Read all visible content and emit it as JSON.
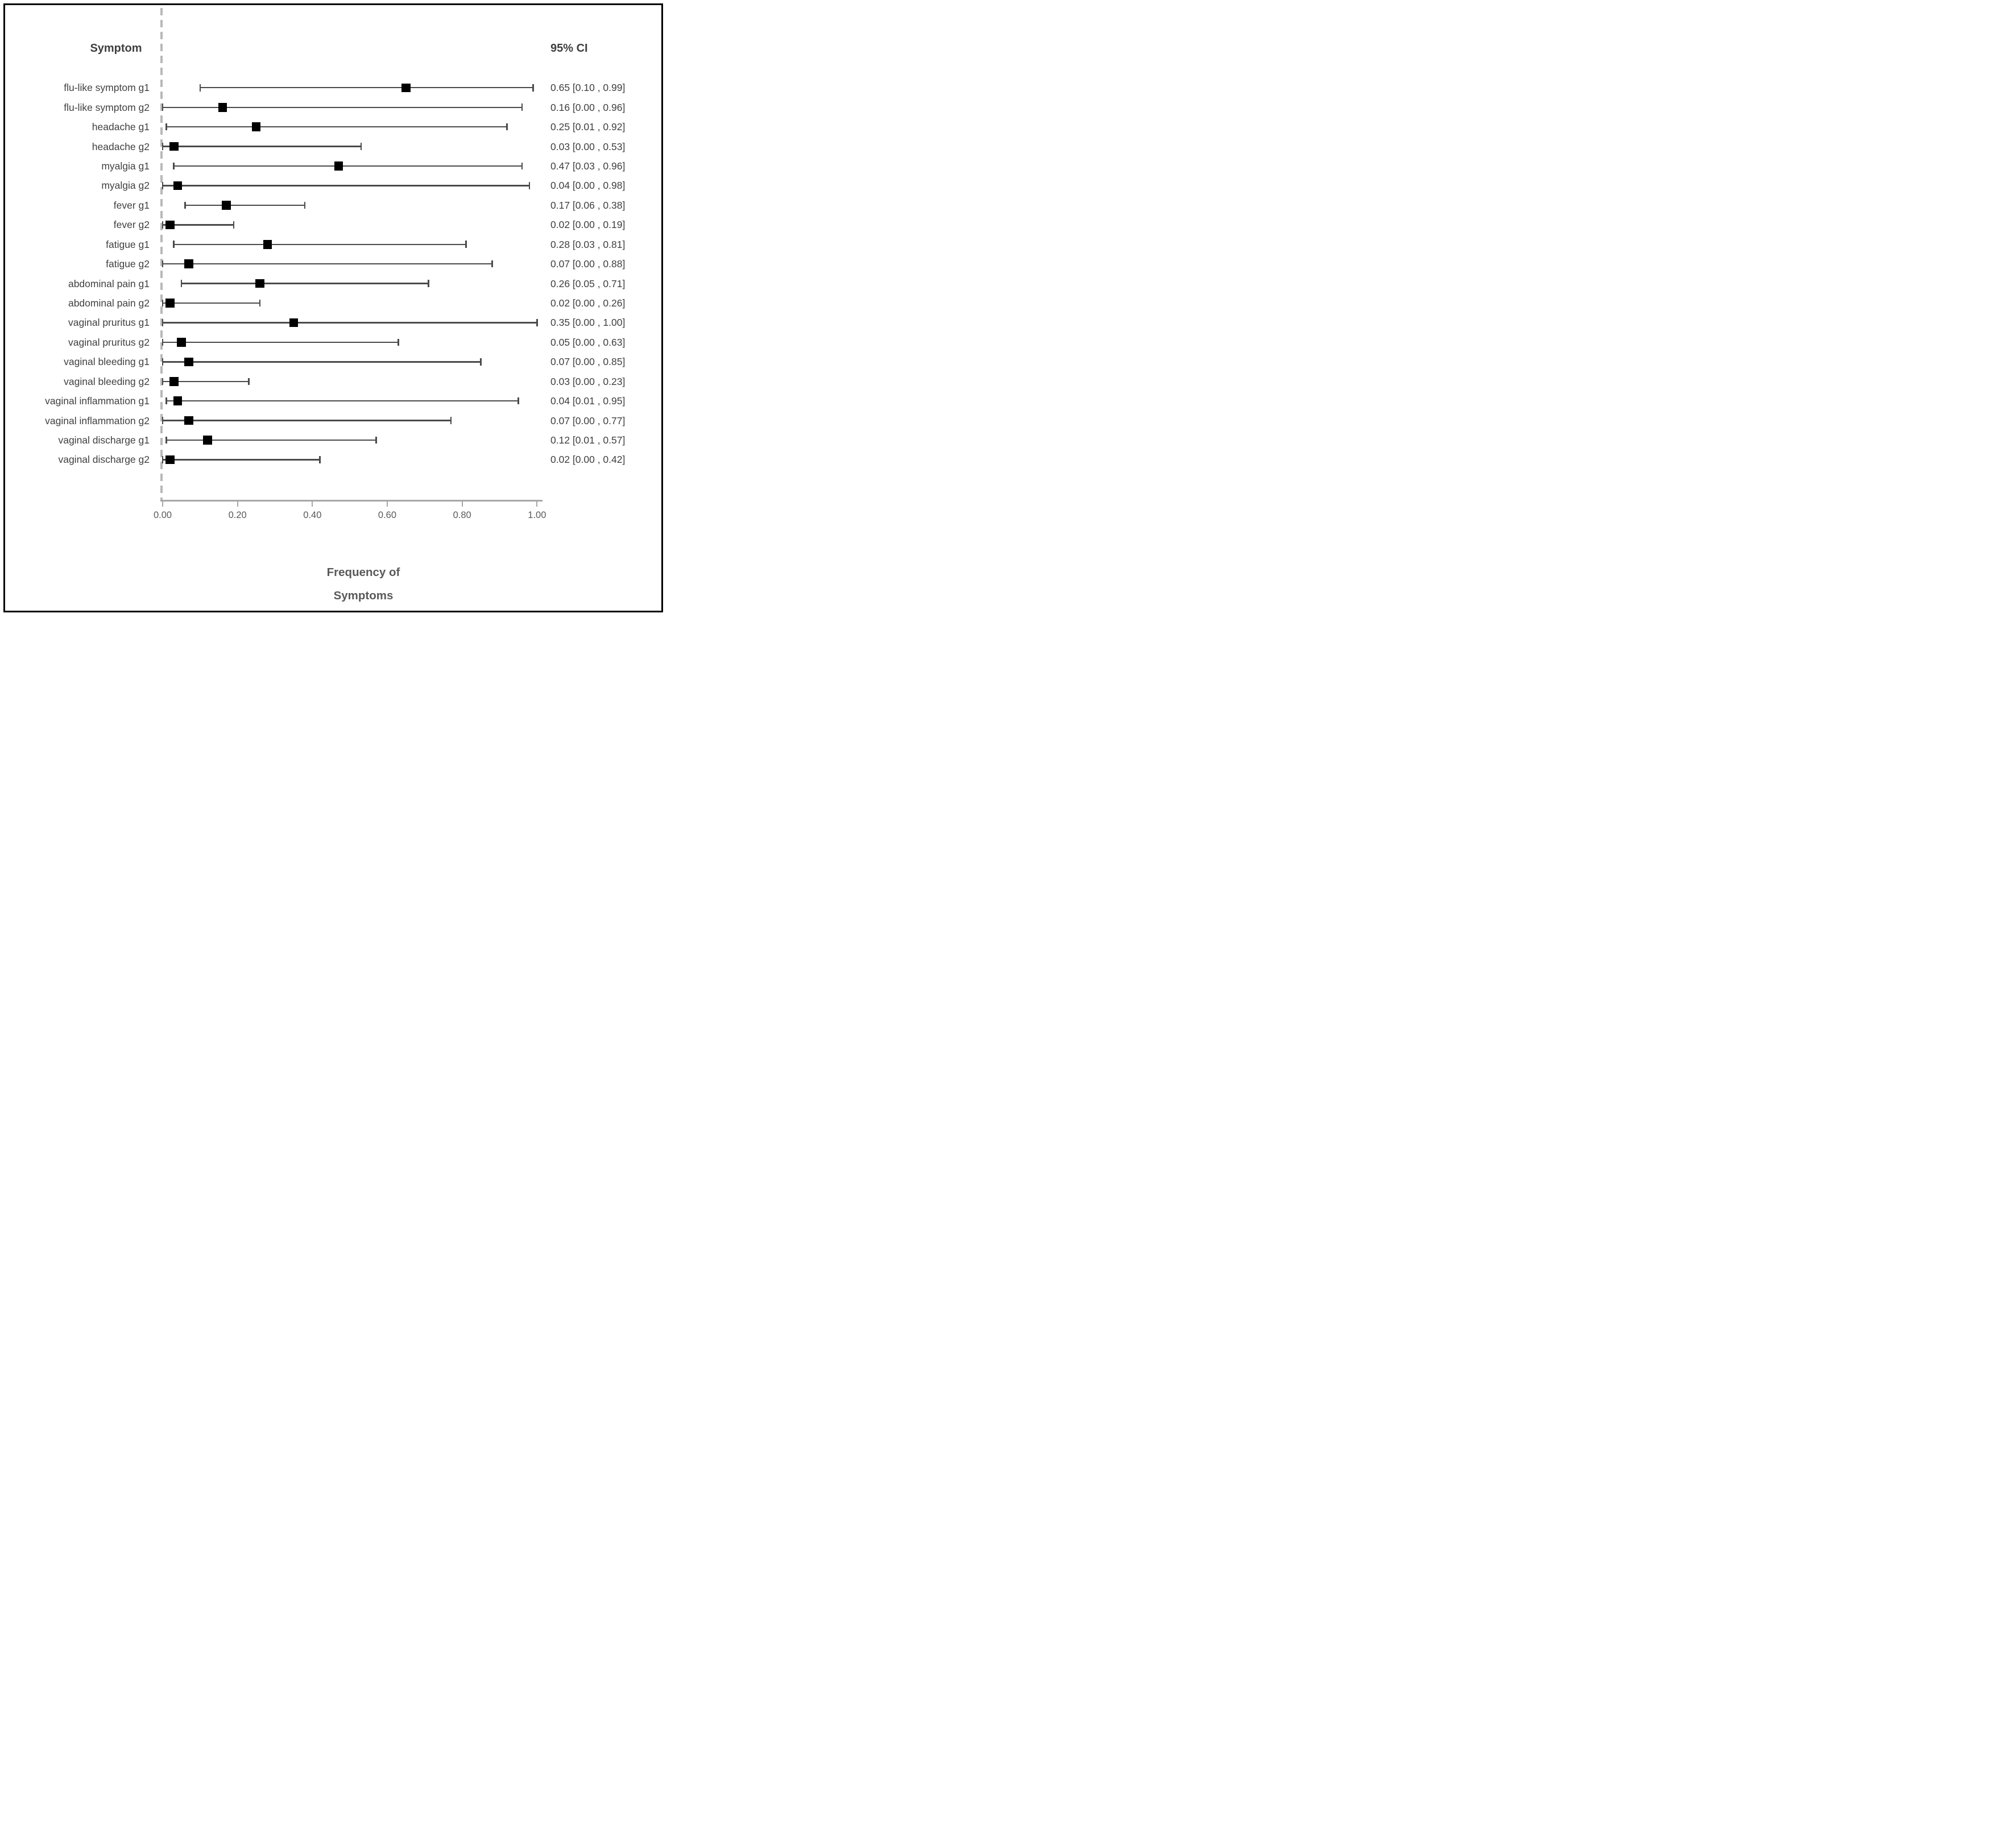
{
  "figure": {
    "col_header_left": "Symptom",
    "col_header_right": "95% CI",
    "axis_title_line1": "Frequency of",
    "axis_title_line2": "Symptoms"
  },
  "chart_data": {
    "type": "scatter",
    "subtype": "forest-plot",
    "title": "",
    "xlabel": "Frequency of Symptoms",
    "ylabel": "Symptom",
    "xlim": [
      0.0,
      1.0
    ],
    "grid": false,
    "zero_reference_line": {
      "x": 0.0,
      "style": "dashed"
    },
    "x_ticks": [
      0.0,
      0.2,
      0.4,
      0.6,
      0.8,
      1.0
    ],
    "x_tick_labels": [
      "0.00",
      "0.20",
      "0.40",
      "0.60",
      "0.80",
      "1.00"
    ],
    "rows": [
      {
        "label": "flu-like symptom g1",
        "estimate": 0.65,
        "ci_low": 0.1,
        "ci_high": 0.99,
        "ci_text": "0.65 [0.10 , 0.99]"
      },
      {
        "label": "flu-like symptom g2",
        "estimate": 0.16,
        "ci_low": 0.0,
        "ci_high": 0.96,
        "ci_text": "0.16 [0.00 , 0.96]"
      },
      {
        "label": "headache g1",
        "estimate": 0.25,
        "ci_low": 0.01,
        "ci_high": 0.92,
        "ci_text": "0.25 [0.01 , 0.92]"
      },
      {
        "label": "headache g2",
        "estimate": 0.03,
        "ci_low": 0.0,
        "ci_high": 0.53,
        "ci_text": "0.03 [0.00 , 0.53]"
      },
      {
        "label": "myalgia g1",
        "estimate": 0.47,
        "ci_low": 0.03,
        "ci_high": 0.96,
        "ci_text": "0.47 [0.03 , 0.96]"
      },
      {
        "label": "myalgia g2",
        "estimate": 0.04,
        "ci_low": 0.0,
        "ci_high": 0.98,
        "ci_text": "0.04 [0.00 , 0.98]"
      },
      {
        "label": "fever g1",
        "estimate": 0.17,
        "ci_low": 0.06,
        "ci_high": 0.38,
        "ci_text": "0.17 [0.06 , 0.38]"
      },
      {
        "label": "fever g2",
        "estimate": 0.02,
        "ci_low": 0.0,
        "ci_high": 0.19,
        "ci_text": "0.02 [0.00 , 0.19]"
      },
      {
        "label": "fatigue g1",
        "estimate": 0.28,
        "ci_low": 0.03,
        "ci_high": 0.81,
        "ci_text": "0.28 [0.03 , 0.81]"
      },
      {
        "label": "fatigue g2",
        "estimate": 0.07,
        "ci_low": 0.0,
        "ci_high": 0.88,
        "ci_text": "0.07 [0.00 , 0.88]"
      },
      {
        "label": "abdominal pain g1",
        "estimate": 0.26,
        "ci_low": 0.05,
        "ci_high": 0.71,
        "ci_text": "0.26 [0.05 , 0.71]"
      },
      {
        "label": "abdominal pain g2",
        "estimate": 0.02,
        "ci_low": 0.0,
        "ci_high": 0.26,
        "ci_text": "0.02 [0.00 , 0.26]"
      },
      {
        "label": "vaginal pruritus g1",
        "estimate": 0.35,
        "ci_low": 0.0,
        "ci_high": 1.0,
        "ci_text": "0.35 [0.00 , 1.00]"
      },
      {
        "label": "vaginal pruritus g2",
        "estimate": 0.05,
        "ci_low": 0.0,
        "ci_high": 0.63,
        "ci_text": "0.05 [0.00 , 0.63]"
      },
      {
        "label": "vaginal bleeding g1",
        "estimate": 0.07,
        "ci_low": 0.0,
        "ci_high": 0.85,
        "ci_text": "0.07 [0.00 , 0.85]"
      },
      {
        "label": "vaginal bleeding g2",
        "estimate": 0.03,
        "ci_low": 0.0,
        "ci_high": 0.23,
        "ci_text": "0.03 [0.00 , 0.23]"
      },
      {
        "label": "vaginal inflammation g1",
        "estimate": 0.04,
        "ci_low": 0.01,
        "ci_high": 0.95,
        "ci_text": "0.04 [0.01 , 0.95]"
      },
      {
        "label": "vaginal inflammation g2",
        "estimate": 0.07,
        "ci_low": 0.0,
        "ci_high": 0.77,
        "ci_text": "0.07 [0.00 , 0.77]"
      },
      {
        "label": "vaginal discharge g1",
        "estimate": 0.12,
        "ci_low": 0.01,
        "ci_high": 0.57,
        "ci_text": "0.12 [0.01 , 0.57]"
      },
      {
        "label": "vaginal discharge g2",
        "estimate": 0.02,
        "ci_low": 0.0,
        "ci_high": 0.42,
        "ci_text": "0.02 [0.00 , 0.42]"
      }
    ],
    "colors": {
      "marker": "#000000",
      "whisker": "#4a4a4a",
      "zero_line": "#b8b8b8",
      "axis": "#a6a6a6",
      "text": "#3f3f3f",
      "tick_text": "#595959",
      "axis_title": "#595959"
    },
    "legend": null
  }
}
